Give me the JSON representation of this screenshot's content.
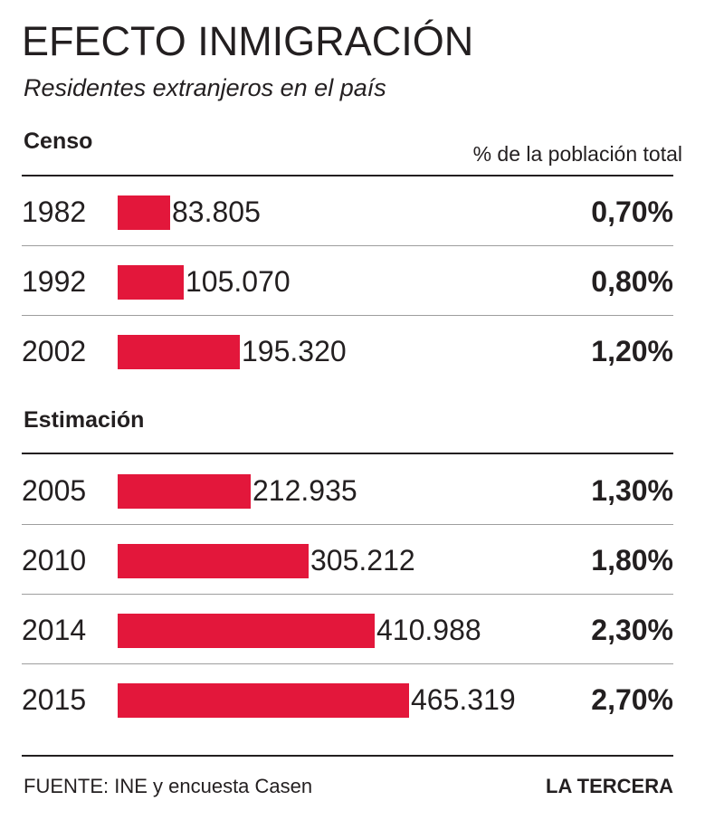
{
  "title": "EFECTO INMIGRACIÓN",
  "subtitle": "Residentes extranjeros en el país",
  "pct_header": "% de la población total",
  "source": "FUENTE: INE y encuesta Casen",
  "brand": "LA TERCERA",
  "colors": {
    "bar": "#e3173b",
    "text": "#231f20"
  },
  "chart_data": {
    "type": "bar",
    "orientation": "horizontal",
    "grid": false,
    "groups": [
      {
        "label": "Censo",
        "rows": [
          {
            "year": "1982",
            "value": 83805,
            "value_label": "83.805",
            "pct": "0,70%"
          },
          {
            "year": "1992",
            "value": 105070,
            "value_label": "105.070",
            "pct": "0,80%"
          },
          {
            "year": "2002",
            "value": 195320,
            "value_label": "195.320",
            "pct": "1,20%"
          }
        ]
      },
      {
        "label": "Estimación",
        "rows": [
          {
            "year": "2005",
            "value": 212935,
            "value_label": "212.935",
            "pct": "1,30%"
          },
          {
            "year": "2010",
            "value": 305212,
            "value_label": "305.212",
            "pct": "1,80%"
          },
          {
            "year": "2014",
            "value": 410988,
            "value_label": "410.988",
            "pct": "2,30%"
          },
          {
            "year": "2015",
            "value": 465319,
            "value_label": "465.319",
            "pct": "2,70%"
          }
        ]
      }
    ]
  }
}
